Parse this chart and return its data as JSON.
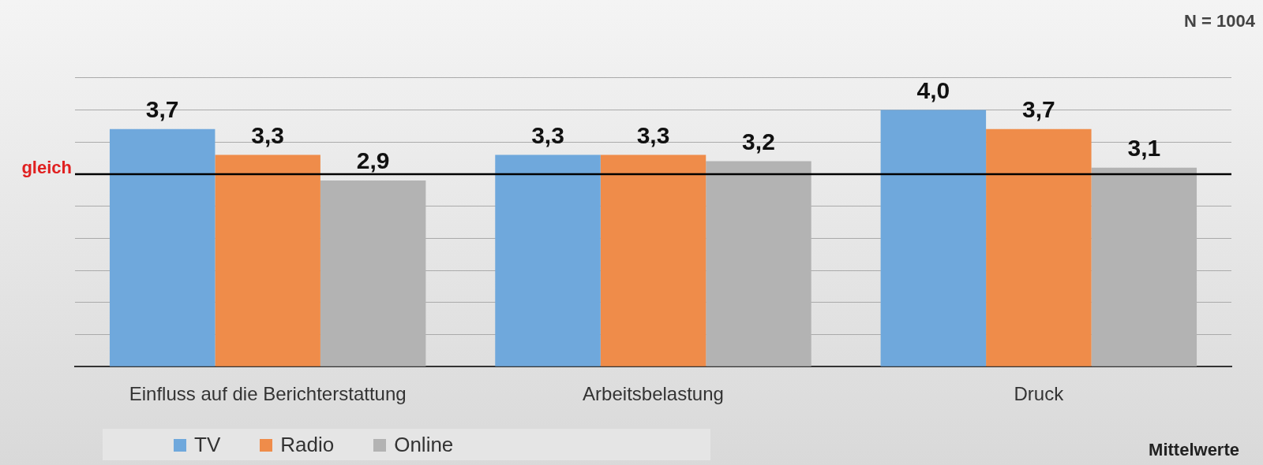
{
  "chart_data": {
    "type": "bar",
    "categories": [
      "Einfluss auf die Berichterstattung",
      "Arbeitsbelastung",
      "Druck"
    ],
    "series": [
      {
        "name": "TV",
        "color": "#6fa8dc",
        "values": [
          3.7,
          3.3,
          4.0
        ],
        "value_labels": [
          "3,7",
          "3,3",
          "4,0"
        ]
      },
      {
        "name": "Radio",
        "color": "#ef8c4a",
        "values": [
          3.3,
          3.3,
          3.7
        ],
        "value_labels": [
          "3,3",
          "3,3",
          "3,7"
        ]
      },
      {
        "name": "Online",
        "color": "#b3b3b3",
        "values": [
          2.9,
          3.2,
          3.1
        ],
        "value_labels": [
          "2,9",
          "3,2",
          "3,1"
        ]
      }
    ],
    "tick_labels": "x",
    "grid": "y",
    "legend": "bottom left",
    "ref_lines": [
      {
        "axis": "y",
        "value": 3,
        "label": "gleich",
        "color": "#000000"
      }
    ],
    "annotations": [
      "N = 1004",
      "Mittelwerte"
    ]
  }
}
